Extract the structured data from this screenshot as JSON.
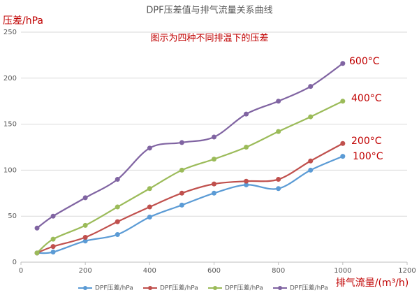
{
  "chart_data": {
    "type": "line",
    "title": "DPF压差值与排气流量关系曲线",
    "subtitle": "图示为四种不同排温下的压差",
    "y_label": "压差/hPa",
    "x_label": "排气流量/(m³/h)",
    "x": [
      50,
      100,
      200,
      300,
      400,
      500,
      600,
      700,
      800,
      900,
      1000
    ],
    "series": [
      {
        "name": "DPF压差/hPa",
        "color": "#5b9bd5",
        "values": [
          10,
          11,
          23,
          30,
          49,
          62,
          75,
          84,
          80,
          100,
          115
        ]
      },
      {
        "name": "DPF压差/hPa",
        "color": "#c0504d",
        "values": [
          10,
          17,
          27,
          44,
          60,
          75,
          85,
          88,
          90,
          110,
          129
        ]
      },
      {
        "name": "DPF压差/hPa",
        "color": "#9bbb59",
        "values": [
          10,
          25,
          40,
          60,
          80,
          100,
          112,
          125,
          142,
          158,
          175
        ]
      },
      {
        "name": "DPF压差/hPa",
        "color": "#8064a2",
        "values": [
          37,
          50,
          70,
          90,
          124,
          130,
          136,
          161,
          175,
          191,
          216
        ]
      }
    ],
    "annotations": [
      "600°C",
      "400°C",
      "200°C",
      "100°C"
    ],
    "annotation_color": "#c00000",
    "xlim": [
      0,
      1200
    ],
    "xticks": [
      0,
      200,
      400,
      600,
      800,
      1000,
      1200
    ],
    "ylim": [
      0,
      250
    ],
    "yticks": [
      0,
      50,
      100,
      150,
      200,
      250
    ],
    "grid": true,
    "smooth": true,
    "legend": "bottom"
  }
}
